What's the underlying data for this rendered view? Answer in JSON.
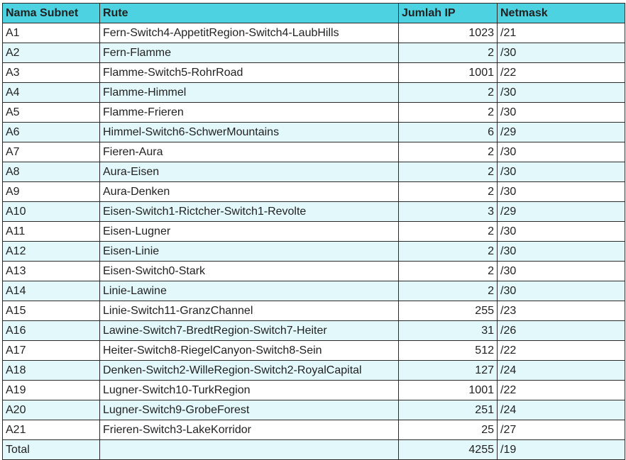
{
  "table": {
    "headers": [
      "Nama Subnet",
      "Rute",
      "Jumlah IP",
      "Netmask"
    ],
    "rows": [
      [
        "A1",
        "Fern-Switch4-AppetitRegion-Switch4-LaubHills",
        "1023",
        "/21"
      ],
      [
        "A2",
        "Fern-Flamme",
        "2",
        "/30"
      ],
      [
        "A3",
        "Flamme-Switch5-RohrRoad",
        "1001",
        "/22"
      ],
      [
        "A4",
        "Flamme-Himmel",
        "2",
        "/30"
      ],
      [
        "A5",
        "Flamme-Frieren",
        "2",
        "/30"
      ],
      [
        "A6",
        "Himmel-Switch6-SchwerMountains",
        "6",
        "/29"
      ],
      [
        "A7",
        "Fieren-Aura",
        "2",
        "/30"
      ],
      [
        "A8",
        "Aura-Eisen",
        "2",
        "/30"
      ],
      [
        "A9",
        "Aura-Denken",
        "2",
        "/30"
      ],
      [
        "A10",
        "Eisen-Switch1-Rictcher-Switch1-Revolte",
        "3",
        "/29"
      ],
      [
        "A11",
        "Eisen-Lugner",
        "2",
        "/30"
      ],
      [
        "A12",
        "Eisen-Linie",
        "2",
        "/30"
      ],
      [
        "A13",
        "Eisen-Switch0-Stark",
        "2",
        "/30"
      ],
      [
        "A14",
        "Linie-Lawine",
        "2",
        "/30"
      ],
      [
        "A15",
        "Linie-Switch11-GranzChannel",
        "255",
        "/23"
      ],
      [
        "A16",
        "Lawine-Switch7-BredtRegion-Switch7-Heiter",
        "31",
        "/26"
      ],
      [
        "A17",
        "Heiter-Switch8-RiegelCanyon-Switch8-Sein",
        "512",
        "/22"
      ],
      [
        "A18",
        "Denken-Switch2-WilleRegion-Switch2-RoyalCapital",
        "127",
        "/24"
      ],
      [
        "A19",
        "Lugner-Switch10-TurkRegion",
        "1001",
        "/22"
      ],
      [
        "A20",
        "Lugner-Switch9-GrobeForest",
        "251",
        "/24"
      ],
      [
        "A21",
        "Frieren-Switch3-LakeKorridor",
        "25",
        "/27"
      ]
    ],
    "total": {
      "label": "Total",
      "rute": "",
      "jumlah_ip": "4255",
      "netmask": "/19"
    }
  },
  "colors": {
    "header_bg": "#4dd2e2",
    "stripe_bg": "#e3f8fb",
    "border": "#2a2a2a"
  }
}
